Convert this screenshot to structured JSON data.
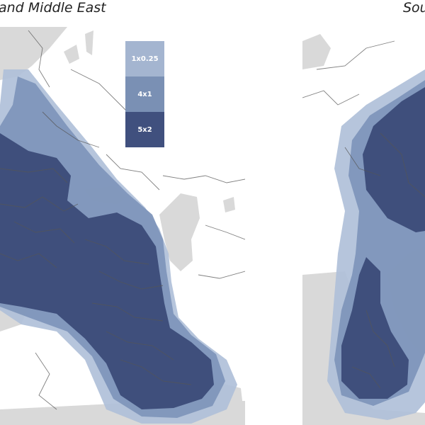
{
  "titles": {
    "left": "and Middle East",
    "right": "Sou"
  },
  "legend": [
    {
      "label": "1x0.25",
      "color": "#a4b5d0"
    },
    {
      "label": "4x1",
      "color": "#7a90b4"
    },
    {
      "label": "5x2",
      "color": "#40507e"
    }
  ],
  "colors": {
    "land": "#ffffff",
    "sea": "#d9d9d9",
    "border": "#555555",
    "coverage_outer": "#aebfd8",
    "coverage_mid": "#7f96ba",
    "coverage_inner": "#3f4f7c"
  }
}
